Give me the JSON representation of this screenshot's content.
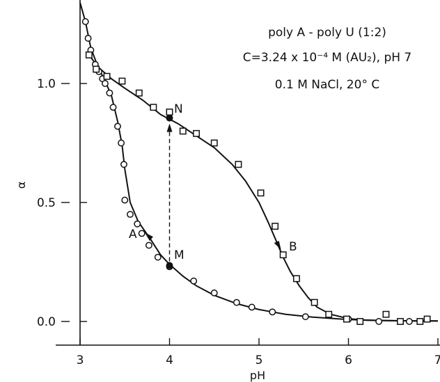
{
  "chart_data": {
    "type": "scatter",
    "title": "",
    "xlabel": "pH",
    "ylabel": "α",
    "xlim": [
      2.75,
      7.0
    ],
    "ylim": [
      -0.13,
      1.34
    ],
    "x_ticks": [
      3,
      4,
      5,
      6,
      7
    ],
    "x_tick_labels": [
      "3",
      "4",
      "5",
      "6",
      "7"
    ],
    "y_ticks": [
      0.0,
      0.5,
      1.0
    ],
    "y_tick_labels": [
      "0.0",
      "0.5",
      "1.0"
    ],
    "grid": false,
    "legend": "none",
    "annotations": [
      "poly A - poly U (1:2)",
      "C=3.24 x 10⁻⁴ M (AU₂), pH 7",
      "0.1 M NaCl, 20° C"
    ],
    "series": [
      {
        "name": "A",
        "marker": "circle-open",
        "x": [
          3.06,
          3.09,
          3.12,
          3.17,
          3.21,
          3.25,
          3.28,
          3.33,
          3.37,
          3.42,
          3.46,
          3.49,
          3.5,
          3.56,
          3.64,
          3.69,
          3.77,
          3.87,
          4.0,
          4.27,
          4.5,
          4.75,
          4.92,
          5.15,
          5.52,
          6.0,
          6.34,
          6.68
        ],
        "y": [
          1.26,
          1.19,
          1.14,
          1.08,
          1.05,
          1.02,
          1.0,
          0.96,
          0.9,
          0.82,
          0.75,
          0.66,
          0.51,
          0.45,
          0.41,
          0.37,
          0.32,
          0.27,
          0.23,
          0.17,
          0.12,
          0.08,
          0.06,
          0.04,
          0.02,
          0.01,
          0.0,
          0.0
        ]
      },
      {
        "name": "B",
        "marker": "square-open",
        "x": [
          3.1,
          3.18,
          3.3,
          3.47,
          3.66,
          3.82,
          4.0,
          4.15,
          4.3,
          4.5,
          4.77,
          5.02,
          5.18,
          5.27,
          5.42,
          5.62,
          5.78,
          5.98,
          6.13,
          6.42,
          6.58,
          6.8,
          6.88
        ],
        "y": [
          1.12,
          1.06,
          1.03,
          1.01,
          0.96,
          0.9,
          0.88,
          0.8,
          0.79,
          0.75,
          0.66,
          0.54,
          0.4,
          0.28,
          0.18,
          0.08,
          0.03,
          0.01,
          0.0,
          0.03,
          0.0,
          0.0,
          0.01
        ]
      }
    ],
    "curve_A": {
      "x": [
        3.0,
        3.06,
        3.12,
        3.2,
        3.28,
        3.35,
        3.42,
        3.47,
        3.5,
        3.56,
        3.65,
        3.78,
        3.9,
        4.0,
        4.15,
        4.3,
        4.5,
        4.75,
        5.0,
        5.3,
        5.6,
        6.0,
        6.4,
        6.8,
        7.0
      ],
      "y": [
        1.34,
        1.26,
        1.15,
        1.07,
        1.01,
        0.95,
        0.84,
        0.74,
        0.64,
        0.5,
        0.42,
        0.35,
        0.28,
        0.24,
        0.19,
        0.15,
        0.11,
        0.075,
        0.05,
        0.03,
        0.018,
        0.008,
        0.004,
        0.002,
        0.002
      ]
    },
    "curve_B": {
      "x": [
        3.1,
        3.2,
        3.35,
        3.5,
        3.7,
        3.9,
        4.1,
        4.3,
        4.5,
        4.7,
        4.85,
        5.0,
        5.1,
        5.18,
        5.27,
        5.35,
        5.45,
        5.55,
        5.65,
        5.8,
        6.0,
        6.2,
        6.5,
        6.8,
        7.0
      ],
      "y": [
        1.12,
        1.07,
        1.02,
        0.98,
        0.93,
        0.87,
        0.83,
        0.78,
        0.73,
        0.66,
        0.59,
        0.5,
        0.42,
        0.35,
        0.27,
        0.21,
        0.15,
        0.1,
        0.06,
        0.03,
        0.012,
        0.005,
        0.003,
        0.002,
        0.002
      ]
    },
    "arrows": [
      {
        "label": "A",
        "x": 3.77,
        "y": 0.35,
        "direction": "up-left"
      },
      {
        "label": "B",
        "x": 5.2,
        "y": 0.33,
        "direction": "down-right"
      }
    ],
    "marked_points": [
      {
        "label": "N",
        "x": 4.0,
        "y": 0.855
      },
      {
        "label": "M",
        "x": 4.0,
        "y": 0.235
      }
    ],
    "jump": {
      "x": 4.0,
      "from": 0.235,
      "to": 0.855,
      "style": "dashed"
    }
  }
}
